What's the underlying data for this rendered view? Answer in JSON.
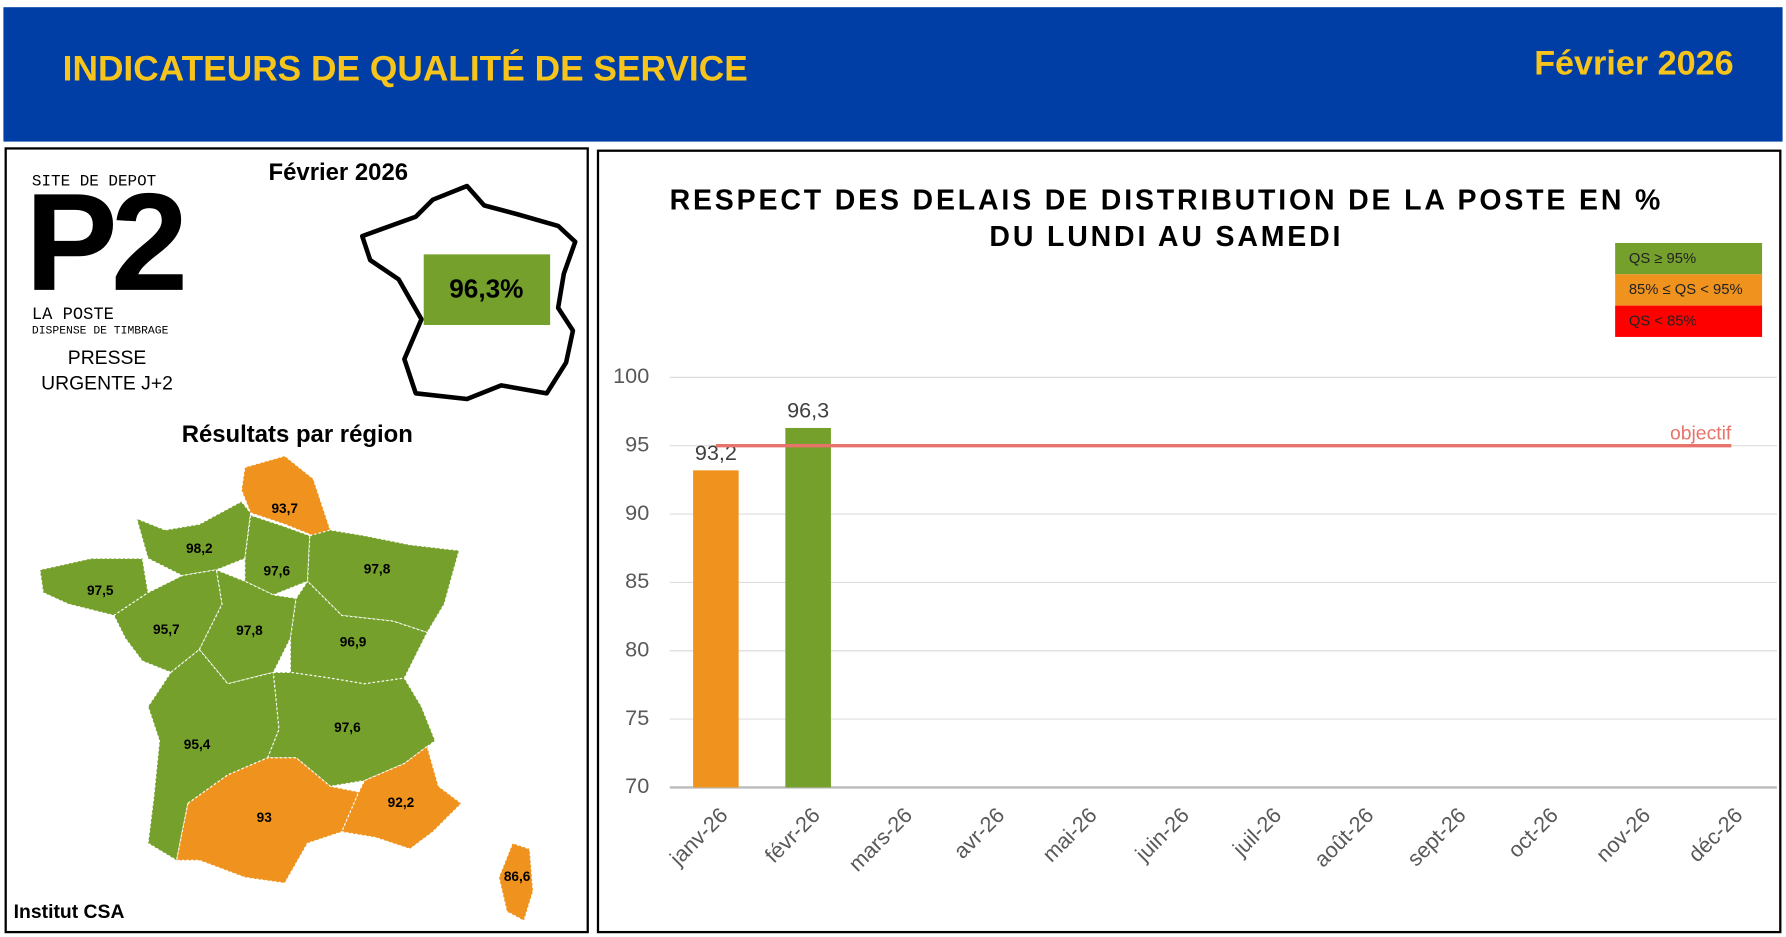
{
  "header": {
    "title": "INDICATEURS DE QUALITÉ DE SERVICE",
    "period": "Février 2026"
  },
  "left_panel": {
    "stamp": {
      "top": "SITE DE DEPOT",
      "code": "P2",
      "brand": "LA POSTE",
      "note": "DISPENSE DE TIMBRAGE"
    },
    "product": [
      "PRESSE",
      "URGENTE J+2"
    ],
    "period": "Février 2026",
    "national": {
      "label": "96,3%",
      "color": "#74a02b"
    },
    "regions_title": "Résultats par région",
    "regions": [
      {
        "label": "93,7",
        "color": "#f0931e"
      },
      {
        "label": "98,2",
        "color": "#74a02b"
      },
      {
        "label": "97,6",
        "color": "#74a02b"
      },
      {
        "label": "97,8",
        "color": "#74a02b"
      },
      {
        "label": "97,5",
        "color": "#74a02b"
      },
      {
        "label": "95,7",
        "color": "#74a02b"
      },
      {
        "label": "97,8",
        "color": "#74a02b"
      },
      {
        "label": "96,9",
        "color": "#74a02b"
      },
      {
        "label": "95,4",
        "color": "#74a02b"
      },
      {
        "label": "97,6",
        "color": "#74a02b"
      },
      {
        "label": "93",
        "color": "#f0931e"
      },
      {
        "label": "92,2",
        "color": "#f0931e"
      },
      {
        "label": "86,6",
        "color": "#f0931e"
      }
    ],
    "source": "Institut CSA"
  },
  "chart_data": {
    "type": "bar",
    "title": [
      "RESPECT DES DELAIS DE DISTRIBUTION DE LA POSTE EN %",
      "DU LUNDI AU SAMEDI"
    ],
    "categories": [
      "janv-26",
      "févr-26",
      "mars-26",
      "avr-26",
      "mai-26",
      "juin-26",
      "juil-26",
      "août-26",
      "sept-26",
      "oct-26",
      "nov-26",
      "déc-26"
    ],
    "values": [
      93.2,
      96.3,
      null,
      null,
      null,
      null,
      null,
      null,
      null,
      null,
      null,
      null
    ],
    "value_labels": [
      "93,2",
      "96,3",
      null,
      null,
      null,
      null,
      null,
      null,
      null,
      null,
      null,
      null
    ],
    "colors": [
      "#f0931e",
      "#74a02b",
      null,
      null,
      null,
      null,
      null,
      null,
      null,
      null,
      null,
      null
    ],
    "ylim": [
      70,
      100
    ],
    "yticks": [
      70,
      75,
      80,
      85,
      90,
      95,
      100
    ],
    "grid": true,
    "target": {
      "value": 95,
      "label": "objectif",
      "color": "#e8736a"
    },
    "legend": [
      {
        "label": "QS ≥ 95%",
        "color": "#74a02b"
      },
      {
        "label": "85% ≤ QS < 95%",
        "color": "#f0931e"
      },
      {
        "label": "QS < 85%",
        "color": "#ff0000"
      }
    ]
  }
}
